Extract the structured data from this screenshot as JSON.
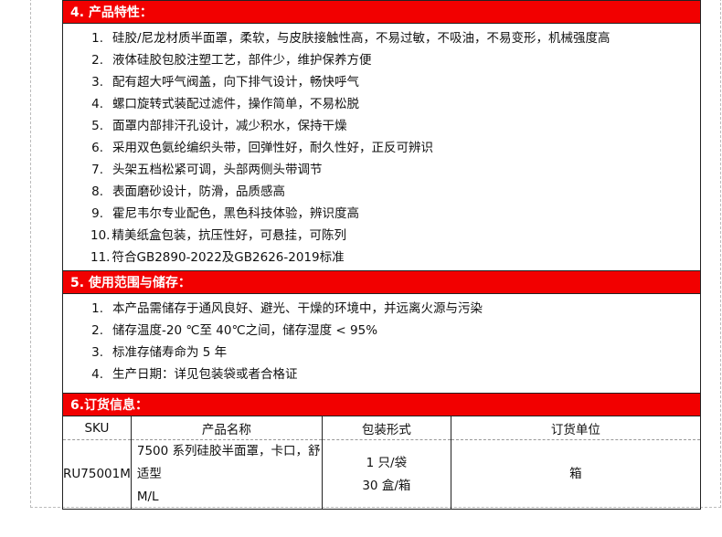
{
  "section4": {
    "title": "4. 产品特性：",
    "items": [
      {
        "num": "1.",
        "text": "硅胶/尼龙材质半面罩，柔软，与皮肤接触性高，不易过敏，不吸油，不易变形，机械强度高"
      },
      {
        "num": "2.",
        "text": "液体硅胶包胶注塑工艺，部件少，维护保养方便"
      },
      {
        "num": "3.",
        "text": "配有超大呼气阀盖，向下排气设计，畅快呼气"
      },
      {
        "num": "4.",
        "text": "螺口旋转式装配过滤件，操作简单，不易松脱"
      },
      {
        "num": "5.",
        "text": "面罩内部排汗孔设计，减少积水，保持干燥"
      },
      {
        "num": "6.",
        "text": "采用双色氨纶编织头带，回弹性好，耐久性好，正反可辨识"
      },
      {
        "num": "7.",
        "text": "头架五档松紧可调，头部两侧头带调节"
      },
      {
        "num": "8.",
        "text": "表面磨砂设计，防滑，品质感高"
      },
      {
        "num": "9.",
        "text": "霍尼韦尔专业配色，黑色科技体验，辨识度高"
      },
      {
        "num": "10.",
        "text": "精美纸盒包装，抗压性好，可悬挂，可陈列"
      },
      {
        "num": "11.",
        "text": "符合GB2890-2022及GB2626-2019标准"
      }
    ]
  },
  "section5": {
    "title": "5. 使用范围与储存：",
    "items": [
      {
        "num": "1.",
        "text": "本产品需储存于通风良好、避光、干燥的环境中，并远离火源与污染"
      },
      {
        "num": "2.",
        "text": "储存温度-20 ℃至 40℃之间，储存湿度 < 95%"
      },
      {
        "num": "3.",
        "text": "标准存储寿命为 5 年"
      },
      {
        "num": "4.",
        "text": "生产日期：详见包装袋或者合格证"
      }
    ]
  },
  "section6": {
    "title": "6.订货信息：",
    "headers": [
      "SKU",
      "产品名称",
      "包装形式",
      "订货单位"
    ],
    "row": {
      "sku": "RU75001M",
      "name_line1": "7500 系列硅胶半面罩，卡口，舒适型",
      "name_line2": "M/L",
      "pack_line1": "1 只/袋",
      "pack_line2": "30 盒/箱",
      "unit": "箱"
    }
  },
  "colors": {
    "section_bar": "#f20000",
    "section_text": "#ffffff"
  }
}
